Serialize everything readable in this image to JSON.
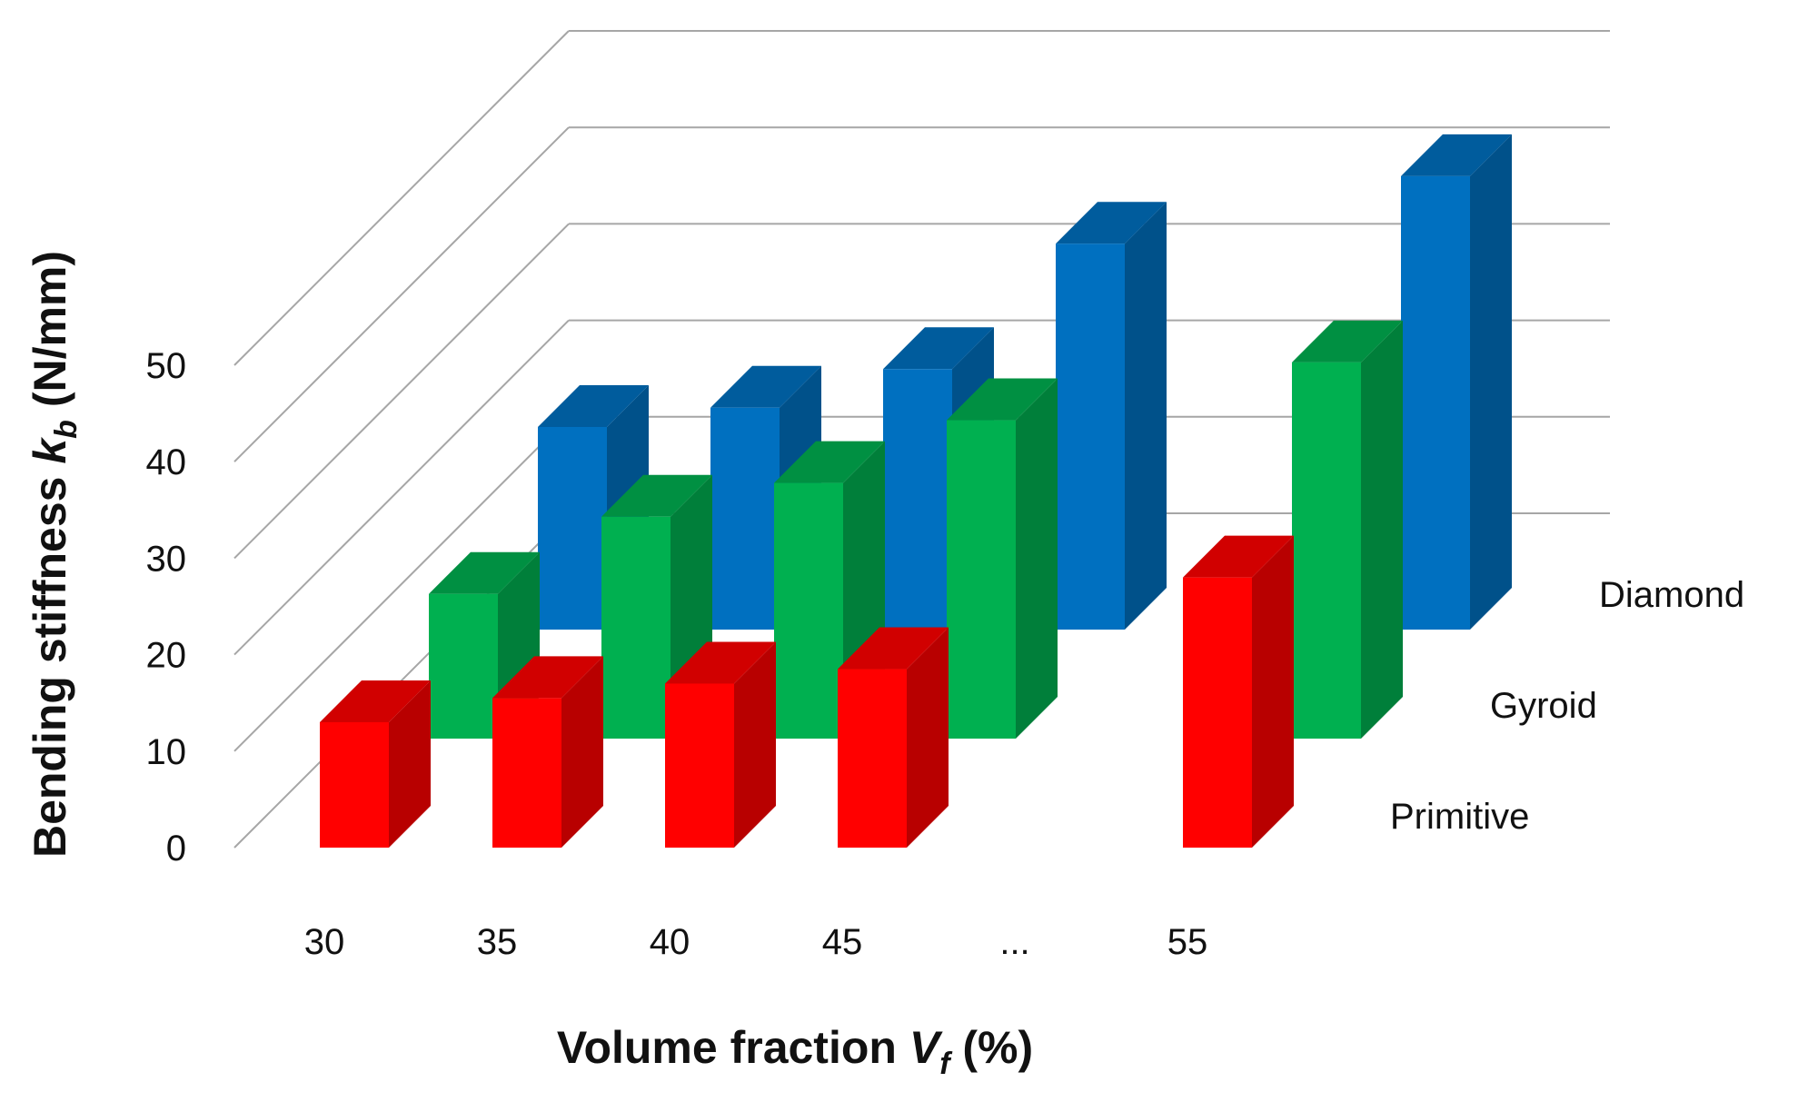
{
  "chart_data": {
    "type": "bar",
    "subtype": "3d-column",
    "title": "",
    "xlabel": {
      "main": "Volume fraction ",
      "var": "V",
      "sub": "f",
      "unit": " (%)"
    },
    "ylabel": {
      "main": "Bending stiffness ",
      "var": "k",
      "sub": "b",
      "unit": " (N/mm)"
    },
    "categories": [
      "30",
      "35",
      "40",
      "45",
      "...",
      "55"
    ],
    "ylim": [
      0,
      50
    ],
    "yticks": [
      "0",
      "10",
      "20",
      "30",
      "40",
      "50"
    ],
    "grid": true,
    "legend": "depth-labels-right",
    "series": [
      {
        "name": "Primitive",
        "color": "#ff0000",
        "values": [
          13,
          15.5,
          17,
          18.5,
          null,
          28
        ]
      },
      {
        "name": "Gyroid",
        "color": "#00b050",
        "values": [
          15,
          23,
          26.5,
          33,
          null,
          39
        ]
      },
      {
        "name": "Diamond",
        "color": "#0070c0",
        "values": [
          21,
          23,
          27,
          40,
          null,
          47
        ]
      }
    ]
  }
}
